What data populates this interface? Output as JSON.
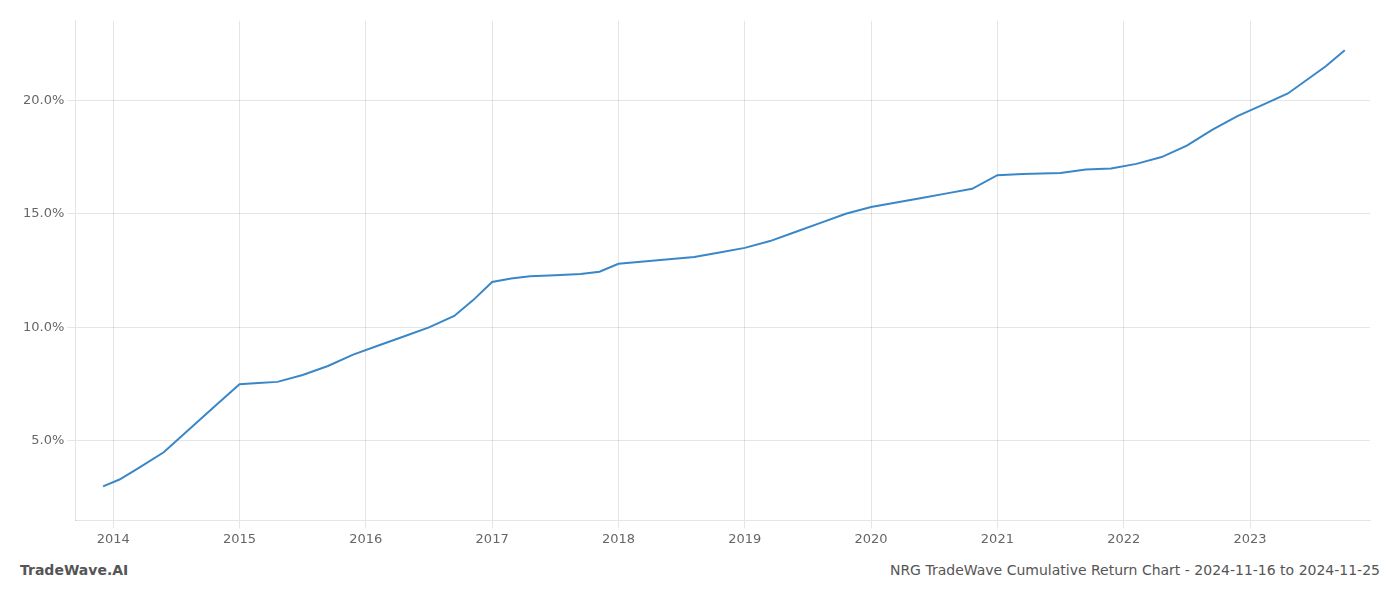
{
  "chart_data": {
    "type": "line",
    "x": [
      2013.92,
      2014.05,
      2014.2,
      2014.4,
      2014.6,
      2014.8,
      2015.0,
      2015.15,
      2015.3,
      2015.5,
      2015.7,
      2015.9,
      2016.1,
      2016.3,
      2016.5,
      2016.7,
      2016.85,
      2017.0,
      2017.15,
      2017.3,
      2017.5,
      2017.7,
      2017.85,
      2018.0,
      2018.2,
      2018.4,
      2018.6,
      2018.8,
      2019.0,
      2019.2,
      2019.4,
      2019.6,
      2019.8,
      2020.0,
      2020.2,
      2020.4,
      2020.6,
      2020.8,
      2021.0,
      2021.2,
      2021.5,
      2021.7,
      2021.9,
      2022.1,
      2022.3,
      2022.5,
      2022.7,
      2022.9,
      2023.1,
      2023.3,
      2023.6,
      2023.75
    ],
    "values": [
      3.0,
      3.3,
      3.8,
      4.5,
      5.5,
      6.5,
      7.5,
      7.55,
      7.6,
      7.9,
      8.3,
      8.8,
      9.2,
      9.6,
      10.0,
      10.5,
      11.2,
      12.0,
      12.15,
      12.25,
      12.3,
      12.35,
      12.45,
      12.8,
      12.9,
      13.0,
      13.1,
      13.3,
      13.5,
      13.8,
      14.2,
      14.6,
      15.0,
      15.3,
      15.5,
      15.7,
      15.9,
      16.1,
      16.7,
      16.75,
      16.8,
      16.95,
      17.0,
      17.2,
      17.5,
      18.0,
      18.7,
      19.3,
      19.8,
      20.3,
      21.5,
      22.2
    ],
    "color": "#3a87c8",
    "xlim": [
      2013.7,
      2023.95
    ],
    "ylim": [
      1.5,
      23.5
    ],
    "xticks": [
      2014,
      2015,
      2016,
      2017,
      2018,
      2019,
      2020,
      2021,
      2022,
      2023
    ],
    "yticks": [
      {
        "value": 5.0,
        "label": "5.0%"
      },
      {
        "value": 10.0,
        "label": "10.0%"
      },
      {
        "value": 15.0,
        "label": "15.0%"
      },
      {
        "value": 20.0,
        "label": "20.0%"
      }
    ],
    "grid": true,
    "annotations": [
      "TradeWave.AI",
      "NRG TradeWave Cumulative Return Chart - 2024-11-16 to 2024-11-25"
    ]
  }
}
